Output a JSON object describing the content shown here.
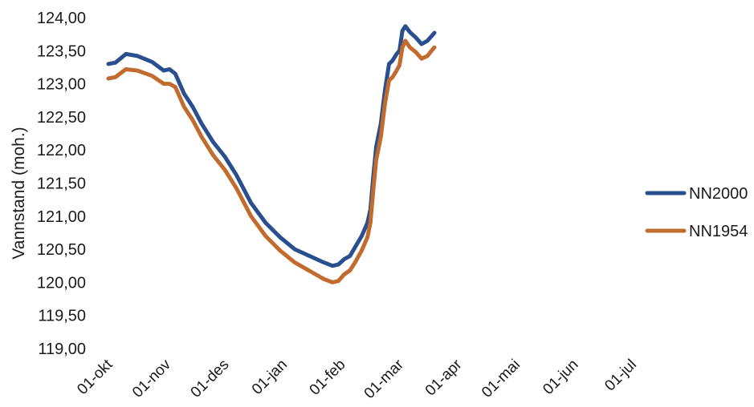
{
  "chart_data": {
    "type": "line",
    "title": "",
    "xlabel": "",
    "ylabel": "Vannstand (moh.)",
    "ylim": [
      119.0,
      124.0
    ],
    "yticks": [
      "119,00",
      "119,50",
      "120,00",
      "120,50",
      "121,00",
      "121,50",
      "122,00",
      "122,50",
      "123,00",
      "123,50",
      "124,00"
    ],
    "categories": [
      "01-okt",
      "01-nov",
      "01-des",
      "01-jan",
      "01-feb",
      "01-mar",
      "01-apr",
      "01-mai",
      "01-jun",
      "01-jul"
    ],
    "grid": false,
    "legend_position": "right",
    "series": [
      {
        "name": "NN2000",
        "color": "#2a4f8e",
        "points": [
          [
            0,
            123.3
          ],
          [
            0.12,
            123.32
          ],
          [
            0.3,
            123.45
          ],
          [
            0.5,
            123.42
          ],
          [
            0.75,
            123.33
          ],
          [
            0.95,
            123.2
          ],
          [
            1.05,
            123.22
          ],
          [
            1.15,
            123.15
          ],
          [
            1.3,
            122.85
          ],
          [
            1.45,
            122.65
          ],
          [
            1.6,
            122.4
          ],
          [
            1.8,
            122.12
          ],
          [
            2.0,
            121.9
          ],
          [
            2.2,
            121.62
          ],
          [
            2.45,
            121.2
          ],
          [
            2.7,
            120.9
          ],
          [
            2.95,
            120.68
          ],
          [
            3.2,
            120.5
          ],
          [
            3.5,
            120.38
          ],
          [
            3.7,
            120.3
          ],
          [
            3.85,
            120.25
          ],
          [
            3.95,
            120.27
          ],
          [
            4.05,
            120.35
          ],
          [
            4.15,
            120.4
          ],
          [
            4.25,
            120.55
          ],
          [
            4.35,
            120.7
          ],
          [
            4.45,
            120.9
          ],
          [
            4.5,
            121.1
          ],
          [
            4.55,
            121.6
          ],
          [
            4.6,
            122.05
          ],
          [
            4.68,
            122.4
          ],
          [
            4.75,
            122.9
          ],
          [
            4.82,
            123.3
          ],
          [
            4.88,
            123.35
          ],
          [
            4.95,
            123.45
          ],
          [
            5.0,
            123.5
          ],
          [
            5.05,
            123.8
          ],
          [
            5.1,
            123.87
          ],
          [
            5.18,
            123.78
          ],
          [
            5.28,
            123.7
          ],
          [
            5.38,
            123.6
          ],
          [
            5.48,
            123.65
          ],
          [
            5.55,
            123.72
          ],
          [
            5.6,
            123.77
          ]
        ]
      },
      {
        "name": "NN1954",
        "color": "#c26b2e",
        "points": [
          [
            0,
            123.08
          ],
          [
            0.12,
            123.1
          ],
          [
            0.3,
            123.22
          ],
          [
            0.5,
            123.2
          ],
          [
            0.75,
            123.12
          ],
          [
            0.95,
            123.0
          ],
          [
            1.05,
            123.0
          ],
          [
            1.15,
            122.95
          ],
          [
            1.3,
            122.65
          ],
          [
            1.45,
            122.45
          ],
          [
            1.6,
            122.2
          ],
          [
            1.8,
            121.92
          ],
          [
            2.0,
            121.7
          ],
          [
            2.2,
            121.42
          ],
          [
            2.45,
            121.0
          ],
          [
            2.7,
            120.7
          ],
          [
            2.95,
            120.48
          ],
          [
            3.2,
            120.3
          ],
          [
            3.5,
            120.15
          ],
          [
            3.7,
            120.05
          ],
          [
            3.85,
            120.0
          ],
          [
            3.95,
            120.02
          ],
          [
            4.05,
            120.12
          ],
          [
            4.15,
            120.18
          ],
          [
            4.25,
            120.32
          ],
          [
            4.35,
            120.48
          ],
          [
            4.45,
            120.68
          ],
          [
            4.5,
            120.9
          ],
          [
            4.55,
            121.4
          ],
          [
            4.6,
            121.85
          ],
          [
            4.68,
            122.2
          ],
          [
            4.75,
            122.7
          ],
          [
            4.82,
            123.05
          ],
          [
            4.88,
            123.1
          ],
          [
            4.95,
            123.2
          ],
          [
            5.0,
            123.28
          ],
          [
            5.05,
            123.55
          ],
          [
            5.1,
            123.65
          ],
          [
            5.18,
            123.55
          ],
          [
            5.28,
            123.48
          ],
          [
            5.38,
            123.38
          ],
          [
            5.48,
            123.42
          ],
          [
            5.55,
            123.5
          ],
          [
            5.6,
            123.55
          ]
        ]
      }
    ]
  }
}
